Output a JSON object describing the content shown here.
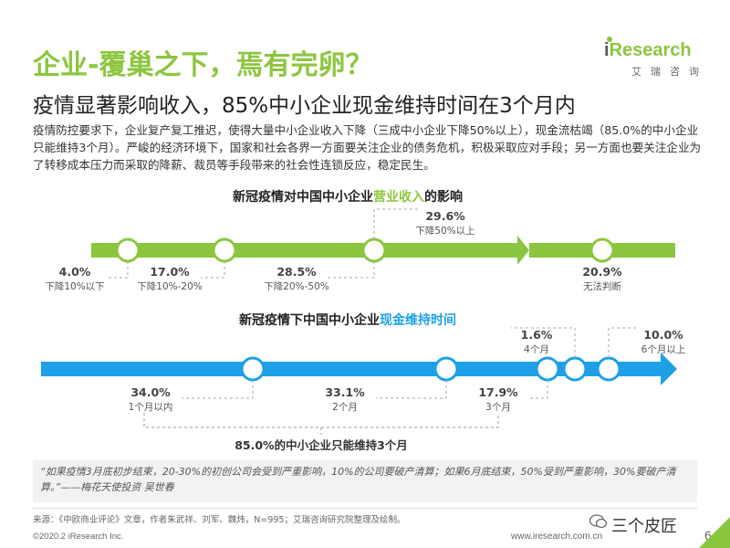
{
  "header": {
    "title": "企业-覆巢之下，焉有完卵？",
    "subtitle": "疫情显著影响收入，85%中小企业现金维持时间在3个月内",
    "logo_brand_i": "i",
    "logo_brand_rest": "Research",
    "logo_cn": "艾瑞咨询"
  },
  "body_text": "疫情防控要求下，企业复产复工推迟，使得大量中小企业收入下降（三成中小企业下降50%以上），现金流枯竭（85.0%的中小企业只能维持3个月）。严峻的经济环境下，国家和社会各界一方面要关注企业的债务危机，积极采取应对手段；另一方面也要关注企业为了转移成本压力而采取的降薪、裁员等手段带来的社会性连锁反应，稳定民生。",
  "chart_data": [
    {
      "type": "timeline",
      "title_prefix": "新冠疫情对中国中小企业",
      "title_highlight": "营业收入",
      "title_suffix": "的影响",
      "items": [
        {
          "value": 4.0,
          "label": "4.0%",
          "desc": "下降10%以下"
        },
        {
          "value": 17.0,
          "label": "17.0%",
          "desc": "下降10%-20%"
        },
        {
          "value": 28.5,
          "label": "28.5%",
          "desc": "下降20%-50%"
        },
        {
          "value": 29.6,
          "label": "29.6%",
          "desc": "下降50%以上"
        },
        {
          "value": 20.9,
          "label": "20.9%",
          "desc": "无法判断"
        }
      ],
      "color": "#8cc63f"
    },
    {
      "type": "timeline",
      "title_prefix": "新冠疫情下中国中小企业",
      "title_highlight": "现金维持时间",
      "title_suffix": "",
      "items": [
        {
          "value": 34.0,
          "label": "34.0%",
          "desc": "1个月以内"
        },
        {
          "value": 33.1,
          "label": "33.1%",
          "desc": "2个月"
        },
        {
          "value": 17.9,
          "label": "17.9%",
          "desc": "3个月"
        },
        {
          "value": 1.6,
          "label": "1.6%",
          "desc": "4个月"
        },
        {
          "value": 10.0,
          "label": "10.0%",
          "desc": "6个月以上"
        }
      ],
      "bracket_label": "85.0%的中小企业只能维持3个月",
      "color": "#1ea0e6"
    }
  ],
  "quote": "“如果疫情3月底初步结束，20-30%的初创公司会受到严重影响，10%的公司要破产清算；如果6月底结束，50%受到严重影响，30%要破产清算。”——梅花天使投资 吴世春",
  "footer": {
    "source": "来源：《中欧商业评论》文章，作者朱武祥、刘军、魏炜，N=995；艾瑞咨询研究院整理及绘制。",
    "copyright": "©2020.2 iResearch Inc.",
    "website": "www.iresearch.com.cn",
    "wechat": "三个皮匠",
    "page": "6"
  },
  "colors": {
    "green": "#8cc63f",
    "blue": "#1ea0e6"
  }
}
